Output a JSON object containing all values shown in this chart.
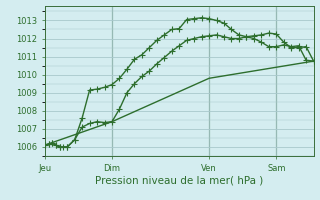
{
  "xlabel": "Pression niveau de la mer( hPa )",
  "bg_color": "#d4edf0",
  "grid_color": "#a8c8cc",
  "line_color": "#2d6e2d",
  "vline_color": "#3a6e3a",
  "ylim": [
    1005.5,
    1013.8
  ],
  "yticks": [
    1006,
    1007,
    1008,
    1009,
    1010,
    1011,
    1012,
    1013
  ],
  "xlim": [
    0,
    36
  ],
  "day_positions": [
    0,
    9,
    22,
    31
  ],
  "day_labels": [
    "Jeu",
    "Dim",
    "Ven",
    "Sam"
  ],
  "vline_positions": [
    9,
    22,
    31
  ],
  "line1_x": [
    0,
    0.5,
    1,
    1.5,
    2,
    2.5,
    3,
    4,
    5,
    6,
    7,
    8,
    9,
    10,
    11,
    12,
    13,
    14,
    15,
    16,
    17,
    18,
    19,
    20,
    21,
    22,
    23,
    24,
    25,
    26,
    27,
    28,
    29,
    30,
    31,
    32,
    33,
    34,
    35,
    36
  ],
  "line1_y": [
    1006.1,
    1006.15,
    1006.2,
    1006.1,
    1006.0,
    1006.0,
    1006.0,
    1006.4,
    1007.6,
    1009.15,
    1009.2,
    1009.3,
    1009.45,
    1009.8,
    1010.3,
    1010.85,
    1011.1,
    1011.5,
    1011.9,
    1012.2,
    1012.5,
    1012.55,
    1013.05,
    1013.1,
    1013.15,
    1013.1,
    1013.0,
    1012.85,
    1012.5,
    1012.2,
    1012.1,
    1012.0,
    1011.8,
    1011.55,
    1011.55,
    1011.65,
    1011.55,
    1011.6,
    1010.8,
    1010.75
  ],
  "line2_x": [
    0,
    0.5,
    1,
    1.5,
    2,
    3,
    4,
    5,
    6,
    7,
    8,
    9,
    10,
    11,
    12,
    13,
    14,
    15,
    16,
    17,
    18,
    19,
    20,
    21,
    22,
    23,
    24,
    25,
    26,
    27,
    28,
    29,
    30,
    31,
    32,
    33,
    34,
    35,
    36
  ],
  "line2_y": [
    1006.1,
    1006.15,
    1006.2,
    1006.1,
    1006.0,
    1006.0,
    1006.4,
    1007.1,
    1007.3,
    1007.4,
    1007.35,
    1007.4,
    1008.1,
    1009.0,
    1009.5,
    1009.9,
    1010.2,
    1010.6,
    1010.95,
    1011.3,
    1011.6,
    1011.9,
    1012.0,
    1012.1,
    1012.15,
    1012.2,
    1012.1,
    1012.0,
    1012.0,
    1012.1,
    1012.15,
    1012.2,
    1012.3,
    1012.25,
    1011.8,
    1011.5,
    1011.5,
    1011.55,
    1010.75
  ],
  "line3_x": [
    0,
    9,
    22,
    36
  ],
  "line3_y": [
    1006.1,
    1007.4,
    1009.8,
    1010.75
  ],
  "marker_size": 2.5,
  "linewidth": 1.0,
  "font_color": "#2d6e2d",
  "tick_fontsize": 6.0,
  "xlabel_fontsize": 7.5
}
